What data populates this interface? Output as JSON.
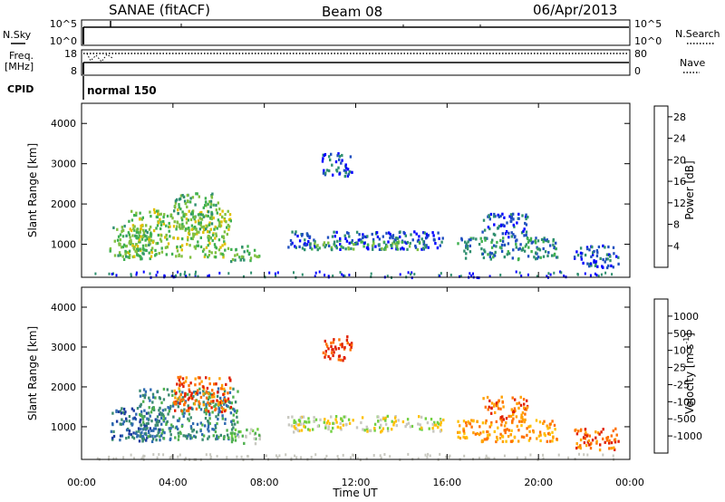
{
  "header": {
    "station": "SANAE (fitACF)",
    "beam": "Beam 08",
    "date": "06/Apr/2013"
  },
  "status_panels": {
    "nsky_label": "N.Sky",
    "nsearch_label": "N.Search",
    "freq_label_1": "Freq.",
    "freq_label_2": "[MHz]",
    "nave_label": "Nave",
    "cpid_label": "CPID",
    "cpid_value": "normal 150",
    "nsky_ticks": [
      "10^5",
      "10^0"
    ],
    "nsearch_ticks": [
      "10^5",
      "10^0"
    ],
    "freq_ticks": [
      "18",
      "8"
    ],
    "nave_ticks": [
      "80",
      "0"
    ]
  },
  "chart_data": [
    {
      "type": "heatmap",
      "title": "",
      "panel": "power",
      "xlabel": "Time UT",
      "ylabel": "Slant Range [km]",
      "xlim": [
        0,
        24
      ],
      "ylim": [
        180,
        4500
      ],
      "x_ticks": [
        "00:00",
        "04:00",
        "08:00",
        "12:00",
        "16:00",
        "20:00",
        "00:00"
      ],
      "y_ticks": [
        "1000",
        "2000",
        "3000",
        "4000"
      ],
      "colorbar": {
        "label": "Power [dB]",
        "ticks": [
          "4",
          "8",
          "12",
          "16",
          "20",
          "24",
          "28"
        ],
        "range": [
          0,
          30
        ],
        "colors": [
          "#0000ff",
          "#1f4fbf",
          "#2f8f6f",
          "#3fb04f",
          "#80c040",
          "#e0c000",
          "#ffa000",
          "#ff7000",
          "#ff3000",
          "#e00000"
        ]
      },
      "regions": [
        {
          "t0": 1.2,
          "t1": 3.0,
          "r0": 650,
          "r1": 1500,
          "level": 3
        },
        {
          "t0": 2.0,
          "t1": 6.5,
          "r0": 700,
          "r1": 1900,
          "level": 4
        },
        {
          "t0": 4.0,
          "t1": 6.0,
          "r0": 1400,
          "r1": 2300,
          "level": 3
        },
        {
          "t0": 6.5,
          "t1": 7.8,
          "r0": 600,
          "r1": 1000,
          "level": 3
        },
        {
          "t0": 9.0,
          "t1": 15.8,
          "r0": 900,
          "r1": 1350,
          "level": 1
        },
        {
          "t0": 10.0,
          "t1": 15.0,
          "r0": 900,
          "r1": 1100,
          "level": 3
        },
        {
          "t0": 16.4,
          "t1": 20.8,
          "r0": 650,
          "r1": 1200,
          "level": 2
        },
        {
          "t0": 17.5,
          "t1": 19.5,
          "r0": 1200,
          "r1": 1800,
          "level": 1
        },
        {
          "t0": 21.5,
          "t1": 23.5,
          "r0": 450,
          "r1": 1000,
          "level": 1
        },
        {
          "t0": 10.5,
          "t1": 11.8,
          "r0": 2700,
          "r1": 3300,
          "level": 1
        }
      ]
    },
    {
      "type": "heatmap",
      "title": "",
      "panel": "velocity",
      "xlabel": "Time UT",
      "ylabel": "Slant Range [km]",
      "xlim": [
        0,
        24
      ],
      "ylim": [
        180,
        4500
      ],
      "x_ticks": [
        "00:00",
        "04:00",
        "08:00",
        "12:00",
        "16:00",
        "20:00",
        "00:00"
      ],
      "y_ticks": [
        "1000",
        "2000",
        "3000",
        "4000"
      ],
      "colorbar": {
        "label": "Velocity [m s-1]",
        "label_main": "Velocity",
        "label_unit": "[m s",
        "label_sup": "-1",
        "label_close": "]",
        "ticks": [
          "1000",
          "500",
          "100",
          "25",
          "-25",
          "-100",
          "-500",
          "-1000"
        ],
        "colors": [
          "#1a3aa0",
          "#2f6ab0",
          "#3a8a70",
          "#4fb04f",
          "#70d040",
          "#c8c8c0",
          "#ffc000",
          "#ffa000",
          "#ff7000",
          "#e02000"
        ]
      },
      "regions": [
        {
          "t0": 1.2,
          "t1": 3.5,
          "r0": 650,
          "r1": 1500,
          "level": 1
        },
        {
          "t0": 2.5,
          "t1": 6.8,
          "r0": 700,
          "r1": 2000,
          "level": 2
        },
        {
          "t0": 4.0,
          "t1": 6.5,
          "r0": 1400,
          "r1": 2300,
          "level": 8
        },
        {
          "t0": 6.5,
          "t1": 7.8,
          "r0": 600,
          "r1": 1000,
          "level": 4
        },
        {
          "t0": 9.0,
          "t1": 15.8,
          "r0": 900,
          "r1": 1300,
          "level": 5
        },
        {
          "t0": 16.4,
          "t1": 20.8,
          "r0": 650,
          "r1": 1200,
          "level": 7
        },
        {
          "t0": 17.5,
          "t1": 19.5,
          "r0": 1200,
          "r1": 1800,
          "level": 8
        },
        {
          "t0": 21.5,
          "t1": 23.5,
          "r0": 450,
          "r1": 1000,
          "level": 8
        },
        {
          "t0": 10.5,
          "t1": 11.8,
          "r0": 2700,
          "r1": 3300,
          "level": 9
        }
      ]
    }
  ]
}
